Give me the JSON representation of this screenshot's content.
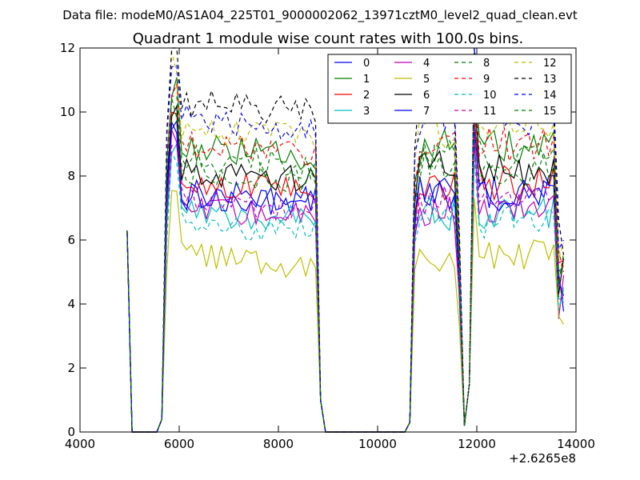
{
  "header": {
    "datafile": "Data file: modeM0/AS1A04_225T01_9000002062_13971cztM0_level2_quad_clean.evt"
  },
  "chart_data": {
    "type": "line",
    "title": "Quadrant 1 module wise count rates with 100.0s bins.",
    "xlabel": "",
    "ylabel": "",
    "x_offset_label": "+2.6265e8",
    "xlim": [
      4000,
      14000
    ],
    "ylim": [
      0,
      12
    ],
    "x_ticks": [
      "4000",
      "6000",
      "8000",
      "10000",
      "12000",
      "14000"
    ],
    "y_ticks": [
      "0",
      "2",
      "4",
      "6",
      "8",
      "10",
      "12"
    ],
    "legend_position": "top-right",
    "base_levels": [
      7.5,
      8.9,
      7.8,
      6.9,
      7.0,
      5.5,
      8.2,
      7.4,
      8.6,
      9.0,
      6.6,
      7.2,
      9.5,
      10.3,
      9.8,
      8.2
    ],
    "series": [
      {
        "name": "0",
        "color": "#0000ff",
        "style": "solid"
      },
      {
        "name": "1",
        "color": "#008000",
        "style": "solid"
      },
      {
        "name": "2",
        "color": "#ff0000",
        "style": "solid"
      },
      {
        "name": "3",
        "color": "#00bfbf",
        "style": "solid"
      },
      {
        "name": "4",
        "color": "#bf00bf",
        "style": "solid"
      },
      {
        "name": "5",
        "color": "#bfbf00",
        "style": "solid"
      },
      {
        "name": "6",
        "color": "#000000",
        "style": "solid"
      },
      {
        "name": "7",
        "color": "#0000ff",
        "style": "solid"
      },
      {
        "name": "8",
        "color": "#008000",
        "style": "dashed"
      },
      {
        "name": "9",
        "color": "#ff0000",
        "style": "dashed"
      },
      {
        "name": "10",
        "color": "#00bfbf",
        "style": "dashed"
      },
      {
        "name": "11",
        "color": "#bf00bf",
        "style": "dashed"
      },
      {
        "name": "12",
        "color": "#bfbf00",
        "style": "dashed"
      },
      {
        "name": "13",
        "color": "#000000",
        "style": "dashed"
      },
      {
        "name": "14",
        "color": "#0000ff",
        "style": "dashed"
      },
      {
        "name": "15",
        "color": "#008000",
        "style": "dashed"
      }
    ]
  }
}
